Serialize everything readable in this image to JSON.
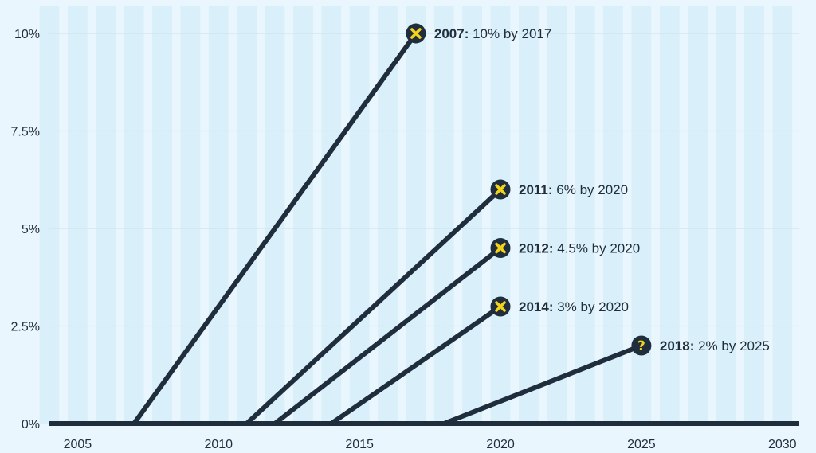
{
  "chart_data": {
    "type": "line",
    "title": "",
    "xlabel": "",
    "ylabel": "",
    "xlim": [
      2004,
      2030.6
    ],
    "ylim": [
      0,
      10
    ],
    "x_ticks": [
      2005,
      2010,
      2015,
      2020,
      2025,
      2030
    ],
    "x_tick_labels": [
      "2005",
      "2010",
      "2015",
      "2020",
      "2025",
      "2030"
    ],
    "y_ticks": [
      0,
      2.5,
      5,
      7.5,
      10
    ],
    "y_tick_labels": [
      "0%",
      "2.5%",
      "5%",
      "7.5%",
      "10%"
    ],
    "grid": {
      "vertical_bands": true,
      "horizontal_lines": true
    },
    "colors": {
      "background": "#eaf6fd",
      "band": "#d9eff9",
      "line": "#1f2d3d",
      "marker_fill": "#1f2d3d",
      "marker_glyph": "#f2d31b"
    },
    "series": [
      {
        "x": [
          2007,
          2017
        ],
        "y": [
          0,
          10
        ],
        "status": "missed",
        "icon": "x-icon",
        "label_year": "2007:",
        "label_text": " 10% by 2017"
      },
      {
        "x": [
          2011,
          2020
        ],
        "y": [
          0,
          6
        ],
        "status": "missed",
        "icon": "x-icon",
        "label_year": "2011:",
        "label_text": " 6% by 2020"
      },
      {
        "x": [
          2012,
          2020
        ],
        "y": [
          0,
          4.5
        ],
        "status": "missed",
        "icon": "x-icon",
        "label_year": "2012:",
        "label_text": " 4.5% by 2020"
      },
      {
        "x": [
          2014,
          2020
        ],
        "y": [
          0,
          3
        ],
        "status": "missed",
        "icon": "x-icon",
        "label_year": "2014:",
        "label_text": " 3% by 2020"
      },
      {
        "x": [
          2018,
          2025
        ],
        "y": [
          0,
          2
        ],
        "status": "pending",
        "icon": "question-icon",
        "label_year": "2018:",
        "label_text": " 2% by 2025"
      }
    ]
  }
}
